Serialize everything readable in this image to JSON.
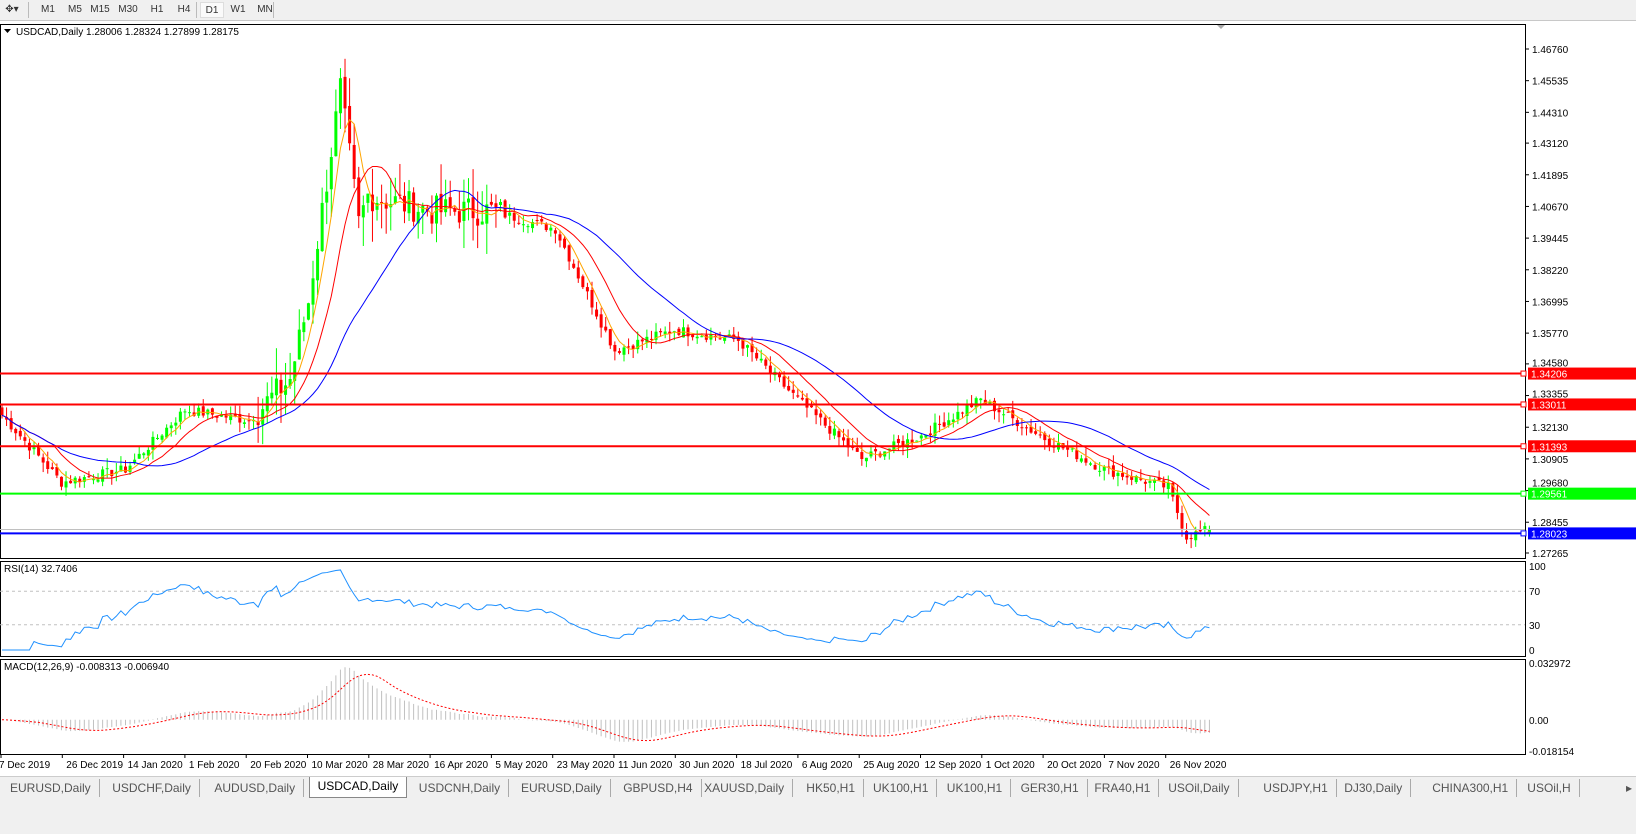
{
  "toolbar": {
    "timeframes": [
      "M1",
      "M5",
      "M15",
      "M30",
      "H1",
      "H4",
      "D1",
      "W1",
      "MN"
    ],
    "active": "D1"
  },
  "chart": {
    "header": "USDCAD,Daily  1.28006 1.28324 1.27899 1.28175",
    "price_ticks": [
      "1.46760",
      "1.45535",
      "1.44310",
      "1.43120",
      "1.41895",
      "1.40670",
      "1.39445",
      "1.38220",
      "1.36995",
      "1.35770",
      "1.34580",
      "1.33355",
      "1.32130",
      "1.30905",
      "1.29680",
      "1.28455",
      "1.27265"
    ],
    "levels": [
      {
        "price": "1.34206",
        "color": "#ff0000"
      },
      {
        "price": "1.33011",
        "color": "#ff0000"
      },
      {
        "price": "1.31393",
        "color": "#ff0000"
      },
      {
        "price": "1.29561",
        "color": "#00ff00"
      },
      {
        "price": "1.28023",
        "color": "#0000ff"
      }
    ],
    "rsi_label": "RSI(14) 32.7406",
    "rsi_ticks": [
      "100",
      "70",
      "30",
      "0"
    ],
    "macd_label": "MACD(12,26,9) -0.008313 -0.006940",
    "macd_ticks": [
      "0.032972",
      "0.00",
      "-0.018154"
    ],
    "date_ticks": [
      "7 Dec 2019",
      "26 Dec 2019",
      "14 Jan 2020",
      "1 Feb 2020",
      "20 Feb 2020",
      "10 Mar 2020",
      "28 Mar 2020",
      "16 Apr 2020",
      "5 May 2020",
      "23 May 2020",
      "11 Jun 2020",
      "30 Jun 2020",
      "18 Jul 2020",
      "6 Aug 2020",
      "25 Aug 2020",
      "12 Sep 2020",
      "1 Oct 2020",
      "20 Oct 2020",
      "7 Nov 2020",
      "26 Nov 2020"
    ]
  },
  "chart_data": {
    "type": "candlestick",
    "symbol": "USDCAD",
    "timeframe": "Daily",
    "last_bar": {
      "open": 1.28006,
      "high": 1.28324,
      "low": 1.27899,
      "close": 1.28175
    },
    "approx_close_at_date_ticks": [
      1.326,
      1.3,
      1.305,
      1.328,
      1.324,
      1.37,
      1.411,
      1.405,
      1.405,
      1.398,
      1.351,
      1.359,
      1.355,
      1.332,
      1.309,
      1.318,
      1.332,
      1.317,
      1.305,
      1.298
    ],
    "peak": {
      "date": "19 Mar 2020",
      "high": 1.4667
    },
    "ylim": [
      1.27265,
      1.4676
    ],
    "colors": {
      "up": "#00ff00",
      "down": "#ff0000",
      "ma_fast": "#ffa500",
      "ma_mid": "#ff0000",
      "ma_slow": "#0000ff",
      "rsi": "#1e90ff",
      "macd_signal": "#ff0000",
      "macd_hist": "#c0c0c0"
    }
  },
  "tabs": [
    "EURUSD,Daily",
    "USDCHF,Daily",
    "AUDUSD,Daily",
    "USDCAD,Daily",
    "USDCNH,Daily",
    "EURUSD,Daily",
    "GBPUSD,H4",
    "XAUUSD,Daily",
    "HK50,H1",
    "UK100,H1",
    "UK100,H1",
    "GER30,H1",
    "FRA40,H1",
    "USOil,Daily",
    "USDJPY,H1",
    "DJ30,Daily",
    "CHINA300,H1",
    "USOil,H"
  ],
  "active_tab": "USDCAD,Daily"
}
